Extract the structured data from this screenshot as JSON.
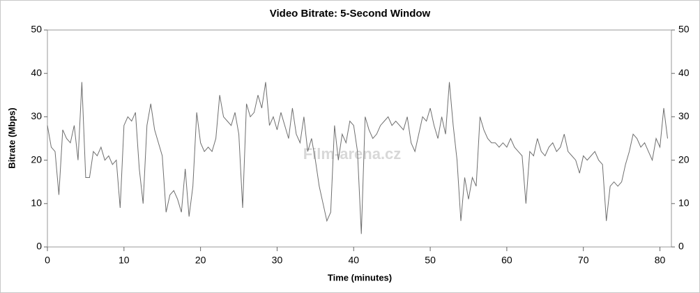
{
  "chart_data": {
    "type": "line",
    "title": "Video Bitrate: 5-Second Window",
    "xlabel": "Time (minutes)",
    "ylabel": "Bitrate (Mbps)",
    "watermark": "Film-arena.cz",
    "xlim": [
      0,
      81.5
    ],
    "ylim": [
      0,
      50
    ],
    "xticks": [
      0,
      10,
      20,
      30,
      40,
      50,
      60,
      70,
      80
    ],
    "yticks": [
      0,
      10,
      20,
      30,
      40,
      50
    ],
    "grid": false,
    "x": [
      0,
      0.5,
      1,
      1.5,
      2,
      2.5,
      3,
      3.5,
      4,
      4.5,
      5,
      5.5,
      6,
      6.5,
      7,
      7.5,
      8,
      8.5,
      9,
      9.5,
      10,
      10.5,
      11,
      11.5,
      12,
      12.5,
      13,
      13.5,
      14,
      14.5,
      15,
      15.5,
      16,
      16.5,
      17,
      17.5,
      18,
      18.5,
      19,
      19.5,
      20,
      20.5,
      21,
      21.5,
      22,
      22.5,
      23,
      23.5,
      24,
      24.5,
      25,
      25.5,
      26,
      26.5,
      27,
      27.5,
      28,
      28.5,
      29,
      29.5,
      30,
      30.5,
      31,
      31.5,
      32,
      32.5,
      33,
      33.5,
      34,
      34.5,
      35,
      35.5,
      36,
      36.5,
      37,
      37.5,
      38,
      38.5,
      39,
      39.5,
      40,
      40.5,
      41,
      41.5,
      42,
      42.5,
      43,
      43.5,
      44,
      44.5,
      45,
      45.5,
      46,
      46.5,
      47,
      47.5,
      48,
      48.5,
      49,
      49.5,
      50,
      50.5,
      51,
      51.5,
      52,
      52.5,
      53,
      53.5,
      54,
      54.5,
      55,
      55.5,
      56,
      56.5,
      57,
      57.5,
      58,
      58.5,
      59,
      59.5,
      60,
      60.5,
      61,
      61.5,
      62,
      62.5,
      63,
      63.5,
      64,
      64.5,
      65,
      65.5,
      66,
      66.5,
      67,
      67.5,
      68,
      68.5,
      69,
      69.5,
      70,
      70.5,
      71,
      71.5,
      72,
      72.5,
      73,
      73.5,
      74,
      74.5,
      75,
      75.5,
      76,
      76.5,
      77,
      77.5,
      78,
      78.5,
      79,
      79.5,
      80,
      80.5,
      81
    ],
    "series": [
      {
        "name": "Video Bitrate",
        "color": "#6e6e6e",
        "values": [
          28,
          23,
          22,
          12,
          27,
          25,
          24,
          28,
          20,
          38,
          16,
          16,
          22,
          21,
          23,
          20,
          21,
          19,
          20,
          9,
          28,
          30,
          29,
          31,
          18,
          10,
          28,
          33,
          27,
          24,
          21,
          8,
          12,
          13,
          11,
          8,
          18,
          7,
          14,
          31,
          24,
          22,
          23,
          22,
          25,
          35,
          30,
          29,
          28,
          31,
          26,
          9,
          33,
          30,
          31,
          35,
          32,
          38,
          28,
          30,
          27,
          31,
          28,
          25,
          32,
          26,
          24,
          30,
          22,
          25,
          20,
          14,
          10,
          6,
          8,
          28,
          20,
          26,
          24,
          29,
          28,
          22,
          3,
          30,
          27,
          25,
          26,
          28,
          29,
          30,
          28,
          29,
          28,
          27,
          30,
          24,
          22,
          26,
          30,
          29,
          32,
          28,
          25,
          30,
          26,
          38,
          28,
          20,
          6,
          16,
          11,
          16,
          14,
          30,
          27,
          25,
          24,
          24,
          23,
          24,
          23,
          25,
          23,
          22,
          21,
          10,
          22,
          21,
          25,
          22,
          21,
          23,
          24,
          22,
          23,
          26,
          22,
          21,
          20,
          17,
          21,
          20,
          21,
          22,
          20,
          19,
          6,
          14,
          15,
          14,
          15,
          19,
          22,
          26,
          25,
          23,
          24,
          22,
          20,
          25,
          23,
          32,
          25
        ]
      }
    ]
  }
}
